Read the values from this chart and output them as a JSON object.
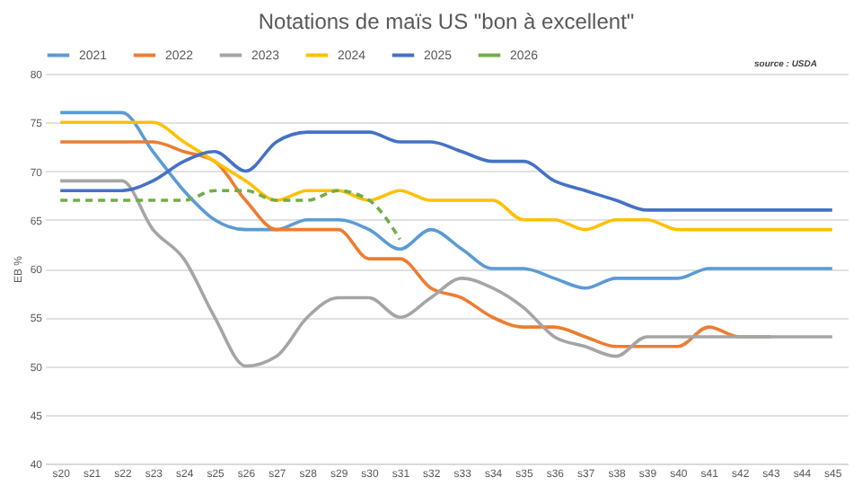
{
  "chart_data": {
    "type": "line",
    "title": "Notations de maïs US \"bon à excellent\"",
    "ylabel": "EB %",
    "annotations": [
      "source : USDA"
    ],
    "categories": [
      "s20",
      "s21",
      "s22",
      "s23",
      "s24",
      "s25",
      "s26",
      "s27",
      "s28",
      "s29",
      "s30",
      "s31",
      "s32",
      "s33",
      "s34",
      "s35",
      "s36",
      "s37",
      "s38",
      "s39",
      "s40",
      "s41",
      "s42",
      "s43",
      "s44",
      "s45"
    ],
    "ylim": [
      40,
      80
    ],
    "yticks": [
      40,
      45,
      50,
      55,
      60,
      65,
      70,
      75,
      80
    ],
    "grid": "y",
    "legend": "top",
    "line_style": "solid",
    "marker": "none",
    "series": [
      {
        "name": "2021",
        "color": "#5b9bd5",
        "values": [
          76,
          76,
          76,
          72,
          68,
          65,
          64,
          64,
          65,
          65,
          64,
          62,
          64,
          62,
          60,
          60,
          59,
          58,
          59,
          59,
          59,
          60,
          60,
          60,
          60,
          60
        ]
      },
      {
        "name": "2022",
        "color": "#ed7d31",
        "values": [
          73,
          73,
          73,
          73,
          72,
          71,
          67,
          64,
          64,
          64,
          61,
          61,
          58,
          57,
          55,
          54,
          54,
          53,
          52,
          52,
          52,
          54,
          53,
          53,
          null,
          null
        ]
      },
      {
        "name": "2023",
        "color": "#a5a5a5",
        "values": [
          69,
          69,
          69,
          64,
          61,
          55,
          50,
          51,
          55,
          57,
          57,
          55,
          57,
          59,
          58,
          56,
          53,
          52,
          51,
          53,
          53,
          53,
          53,
          53,
          53,
          53
        ]
      },
      {
        "name": "2024",
        "color": "#ffc000",
        "values": [
          75,
          75,
          75,
          75,
          73,
          71,
          69,
          67,
          68,
          68,
          67,
          68,
          67,
          67,
          67,
          65,
          65,
          64,
          65,
          65,
          64,
          64,
          64,
          64,
          64,
          64
        ]
      },
      {
        "name": "2025",
        "color": "#4472c4",
        "values": [
          68,
          68,
          68,
          69,
          71,
          72,
          70,
          73,
          74,
          74,
          74,
          73,
          73,
          72,
          71,
          71,
          69,
          68,
          67,
          66,
          66,
          66,
          66,
          66,
          66,
          66
        ]
      },
      {
        "name": "2026",
        "color": "#70ad47",
        "line_style": "dashed",
        "values": [
          67,
          67,
          67,
          67,
          67,
          68,
          68,
          67,
          67,
          68,
          67,
          63,
          null,
          null,
          null,
          null,
          null,
          null,
          null,
          null,
          null,
          null,
          null,
          null,
          null,
          null
        ]
      }
    ]
  }
}
